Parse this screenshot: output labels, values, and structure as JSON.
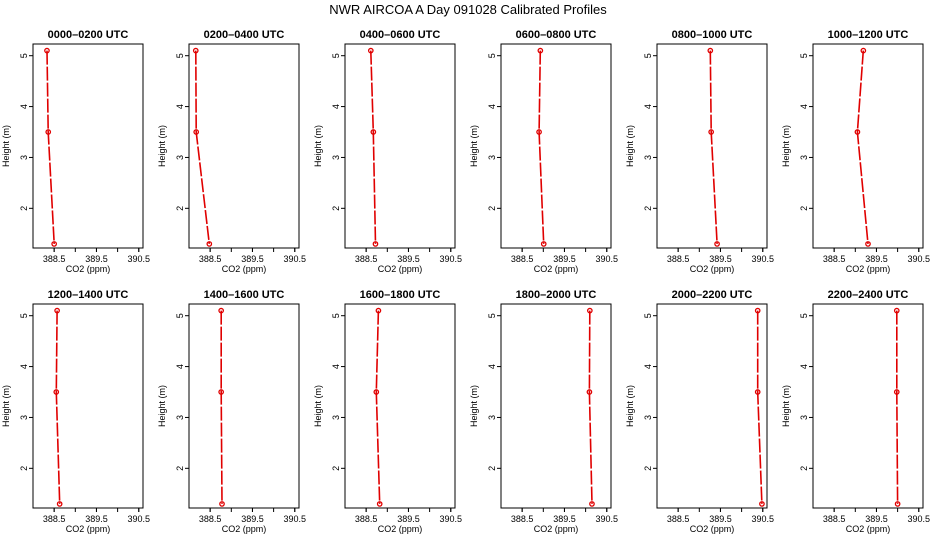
{
  "figure_title": "NWR AIRCOA A  Day 091028  Calibrated Profiles",
  "chart_data": [
    {
      "type": "line",
      "title": "0000–0200 UTC",
      "xlabel": "CO2 (ppm)",
      "ylabel": "Height (m)",
      "xlim": [
        388.0,
        390.6
      ],
      "ylim": [
        1.22,
        5.23
      ],
      "xticks": [
        "388.5",
        "389.5",
        "390.5"
      ],
      "yticks": [
        "2",
        "3",
        "4",
        "5"
      ],
      "series": [
        {
          "name": "profile",
          "color": "#e00000",
          "x": [
            388.33,
            388.36,
            388.5
          ],
          "y": [
            5.1,
            3.5,
            1.3
          ]
        }
      ]
    },
    {
      "type": "line",
      "title": "0200–0400 UTC",
      "xlabel": "CO2 (ppm)",
      "ylabel": "Height (m)",
      "xlim": [
        388.0,
        390.6
      ],
      "ylim": [
        1.22,
        5.23
      ],
      "xticks": [
        "388.5",
        "389.5",
        "390.5"
      ],
      "yticks": [
        "2",
        "3",
        "4",
        "5"
      ],
      "series": [
        {
          "name": "profile",
          "color": "#e00000",
          "x": [
            388.16,
            388.17,
            388.48
          ],
          "y": [
            5.1,
            3.5,
            1.3
          ]
        }
      ]
    },
    {
      "type": "line",
      "title": "0400–0600 UTC",
      "xlabel": "CO2 (ppm)",
      "ylabel": "Height (m)",
      "xlim": [
        388.0,
        390.6
      ],
      "ylim": [
        1.22,
        5.23
      ],
      "xticks": [
        "388.5",
        "389.5",
        "390.5"
      ],
      "yticks": [
        "2",
        "3",
        "4",
        "5"
      ],
      "series": [
        {
          "name": "profile",
          "color": "#e00000",
          "x": [
            388.61,
            388.67,
            388.72
          ],
          "y": [
            5.1,
            3.5,
            1.3
          ]
        }
      ]
    },
    {
      "type": "line",
      "title": "0600–0800 UTC",
      "xlabel": "CO2 (ppm)",
      "ylabel": "Height (m)",
      "xlim": [
        388.0,
        390.6
      ],
      "ylim": [
        1.22,
        5.23
      ],
      "xticks": [
        "388.5",
        "389.5",
        "390.5"
      ],
      "yticks": [
        "2",
        "3",
        "4",
        "5"
      ],
      "series": [
        {
          "name": "profile",
          "color": "#e00000",
          "x": [
            388.93,
            388.9,
            389.01
          ],
          "y": [
            5.1,
            3.5,
            1.3
          ]
        }
      ]
    },
    {
      "type": "line",
      "title": "0800–1000 UTC",
      "xlabel": "CO2 (ppm)",
      "ylabel": "Height (m)",
      "xlim": [
        388.0,
        390.6
      ],
      "ylim": [
        1.22,
        5.23
      ],
      "xticks": [
        "388.5",
        "389.5",
        "390.5"
      ],
      "yticks": [
        "2",
        "3",
        "4",
        "5"
      ],
      "series": [
        {
          "name": "profile",
          "color": "#e00000",
          "x": [
            389.26,
            389.28,
            389.42
          ],
          "y": [
            5.1,
            3.5,
            1.3
          ]
        }
      ]
    },
    {
      "type": "line",
      "title": "1000–1200 UTC",
      "xlabel": "CO2 (ppm)",
      "ylabel": "Height (m)",
      "xlim": [
        388.0,
        390.6
      ],
      "ylim": [
        1.22,
        5.23
      ],
      "xticks": [
        "388.5",
        "389.5",
        "390.5"
      ],
      "yticks": [
        "2",
        "3",
        "4",
        "5"
      ],
      "series": [
        {
          "name": "profile",
          "color": "#e00000",
          "x": [
            389.19,
            389.05,
            389.3
          ],
          "y": [
            5.1,
            3.5,
            1.3
          ]
        }
      ]
    },
    {
      "type": "line",
      "title": "1200–1400 UTC",
      "xlabel": "CO2 (ppm)",
      "ylabel": "Height (m)",
      "xlim": [
        388.0,
        390.6
      ],
      "ylim": [
        1.22,
        5.23
      ],
      "xticks": [
        "388.5",
        "389.5",
        "390.5"
      ],
      "yticks": [
        "2",
        "3",
        "4",
        "5"
      ],
      "series": [
        {
          "name": "profile",
          "color": "#e00000",
          "x": [
            388.57,
            388.55,
            388.63
          ],
          "y": [
            5.1,
            3.5,
            1.3
          ]
        }
      ]
    },
    {
      "type": "line",
      "title": "1400–1600 UTC",
      "xlabel": "CO2 (ppm)",
      "ylabel": "Height (m)",
      "xlim": [
        388.0,
        390.6
      ],
      "ylim": [
        1.22,
        5.23
      ],
      "xticks": [
        "388.5",
        "389.5",
        "390.5"
      ],
      "yticks": [
        "2",
        "3",
        "4",
        "5"
      ],
      "series": [
        {
          "name": "profile",
          "color": "#e00000",
          "x": [
            388.76,
            388.76,
            388.78
          ],
          "y": [
            5.1,
            3.5,
            1.3
          ]
        }
      ]
    },
    {
      "type": "line",
      "title": "1600–1800 UTC",
      "xlabel": "CO2 (ppm)",
      "ylabel": "Height (m)",
      "xlim": [
        388.0,
        390.6
      ],
      "ylim": [
        1.22,
        5.23
      ],
      "xticks": [
        "388.5",
        "389.5",
        "390.5"
      ],
      "yticks": [
        "2",
        "3",
        "4",
        "5"
      ],
      "series": [
        {
          "name": "profile",
          "color": "#e00000",
          "x": [
            388.79,
            388.74,
            388.82
          ],
          "y": [
            5.1,
            3.5,
            1.3
          ]
        }
      ]
    },
    {
      "type": "line",
      "title": "1800–2000 UTC",
      "xlabel": "CO2 (ppm)",
      "ylabel": "Height (m)",
      "xlim": [
        388.0,
        390.6
      ],
      "ylim": [
        1.22,
        5.23
      ],
      "xticks": [
        "388.5",
        "389.5",
        "390.5"
      ],
      "yticks": [
        "2",
        "3",
        "4",
        "5"
      ],
      "series": [
        {
          "name": "profile",
          "color": "#e00000",
          "x": [
            390.1,
            390.09,
            390.15
          ],
          "y": [
            5.1,
            3.5,
            1.3
          ]
        }
      ]
    },
    {
      "type": "line",
      "title": "2000–2200 UTC",
      "xlabel": "CO2 (ppm)",
      "ylabel": "Height (m)",
      "xlim": [
        388.0,
        390.6
      ],
      "ylim": [
        1.22,
        5.23
      ],
      "xticks": [
        "388.5",
        "389.5",
        "390.5"
      ],
      "yticks": [
        "2",
        "3",
        "4",
        "5"
      ],
      "series": [
        {
          "name": "profile",
          "color": "#e00000",
          "x": [
            390.38,
            390.38,
            390.48
          ],
          "y": [
            5.1,
            3.5,
            1.3
          ]
        }
      ]
    },
    {
      "type": "line",
      "title": "2200–2400 UTC",
      "xlabel": "CO2 (ppm)",
      "ylabel": "Height (m)",
      "xlim": [
        388.0,
        390.6
      ],
      "ylim": [
        1.22,
        5.23
      ],
      "xticks": [
        "388.5",
        "389.5",
        "390.5"
      ],
      "yticks": [
        "2",
        "3",
        "4",
        "5"
      ],
      "series": [
        {
          "name": "profile",
          "color": "#e00000",
          "x": [
            389.98,
            389.98,
            390.0
          ],
          "y": [
            5.1,
            3.5,
            1.3
          ]
        }
      ]
    }
  ]
}
